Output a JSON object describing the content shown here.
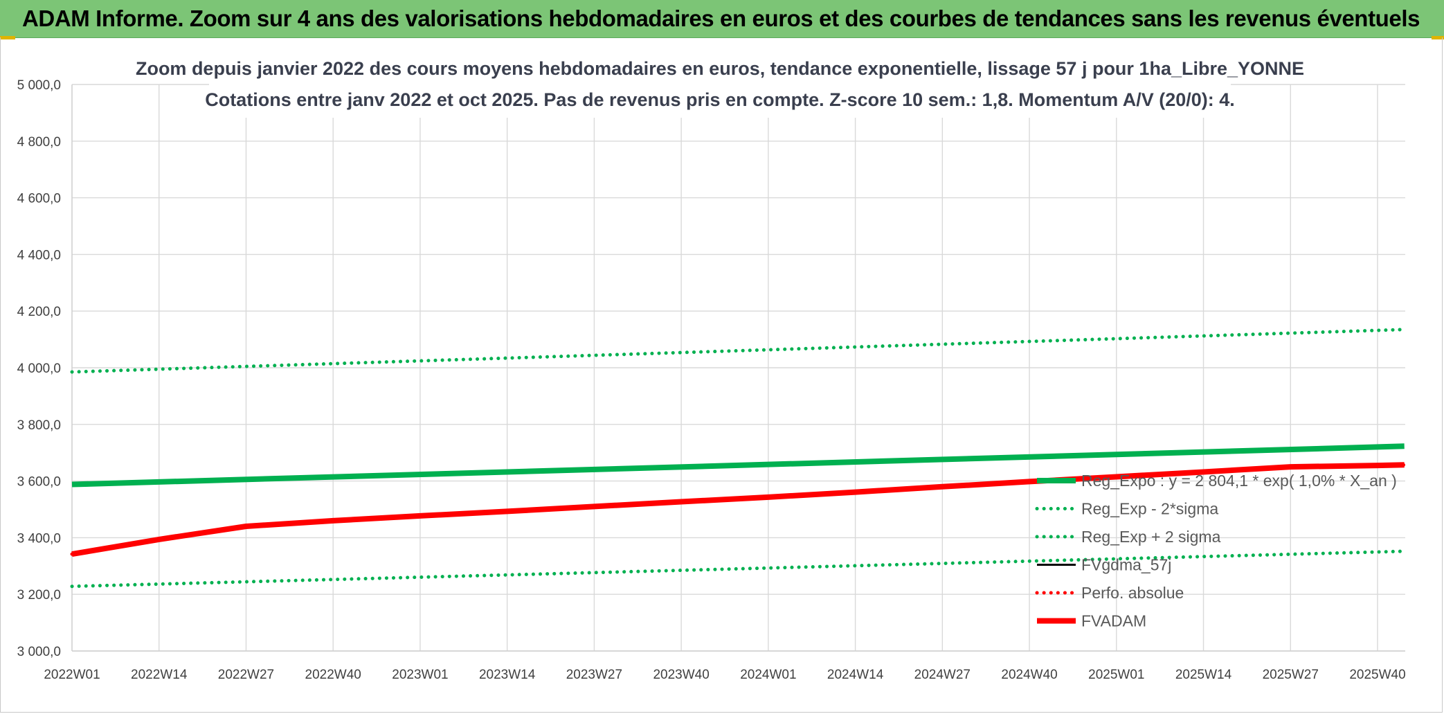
{
  "header": {
    "title": "ADAM Informe. Zoom sur 4 ans des valorisations hebdomadaires en euros et des courbes de tendances sans les revenus éventuels"
  },
  "chart_data": {
    "type": "line",
    "title": "Zoom depuis janvier 2022 des cours moyens hebdomadaires en euros, tendance exponentielle, lissage 57 j pour 1ha_Libre_YONNE",
    "subtitle": "Cotations entre janv 2022 et oct 2025. Pas de revenus pris en compte. Z-score 10 sem.: 1,8. Momentum A/V (20/0): 4.",
    "xlabel": "",
    "ylabel": "",
    "ylim": [
      3000,
      5000
    ],
    "y_ticks": [
      "3 000,0",
      "3 200,0",
      "3 400,0",
      "3 600,0",
      "3 800,0",
      "4 000,0",
      "4 200,0",
      "4 400,0",
      "4 600,0",
      "4 800,0",
      "5 000,0"
    ],
    "y_tick_values": [
      3000,
      3200,
      3400,
      3600,
      3800,
      4000,
      4200,
      4400,
      4600,
      4800,
      5000
    ],
    "categories": [
      "2022W01",
      "2022W14",
      "2022W27",
      "2022W40",
      "2023W01",
      "2023W14",
      "2023W27",
      "2023W40",
      "2024W01",
      "2024W14",
      "2024W27",
      "2024W40",
      "2025W01",
      "2025W14",
      "2025W27",
      "2025W40"
    ],
    "x_range": [
      "2022W01",
      "2025W44"
    ],
    "grid": true,
    "legend_position": "right",
    "colors": {
      "green": "#00b050",
      "red": "#ff0000",
      "black": "#000000",
      "grid": "#d9d9d9"
    },
    "series": [
      {
        "name": "Reg_Expo : y = 2 804,1 * exp( 1,0% *  X_an )",
        "style": "solid-thick",
        "color": "#00b050",
        "x": [
          "2022W01",
          "2025W44"
        ],
        "y": [
          3588,
          3723
        ]
      },
      {
        "name": "Reg_Exp - 2*sigma",
        "style": "dotted",
        "color": "#00b050",
        "x": [
          "2022W01",
          "2025W44"
        ],
        "y": [
          3228,
          3352
        ]
      },
      {
        "name": "Reg_Exp + 2 sigma",
        "style": "dotted",
        "color": "#00b050",
        "x": [
          "2022W01",
          "2025W44"
        ],
        "y": [
          3985,
          4135
        ]
      },
      {
        "name": "FVgdma_57j",
        "style": "solid",
        "color": "#000000",
        "x": [
          "2022W01",
          "2022W14",
          "2022W27",
          "2022W40",
          "2023W01",
          "2023W14",
          "2023W27",
          "2023W40",
          "2024W01",
          "2024W14",
          "2024W27",
          "2024W40",
          "2025W01",
          "2025W14",
          "2025W27",
          "2025W40",
          "2025W44"
        ],
        "y": [
          3342,
          3392,
          3438,
          3460,
          3477,
          3493,
          3510,
          3527,
          3543,
          3561,
          3580,
          3598,
          3615,
          3632,
          3649,
          3655,
          3657
        ]
      },
      {
        "name": "Perfo. absolue",
        "style": "dotted",
        "color": "#ff0000",
        "x": [
          "2022W01",
          "2022W14",
          "2022W27",
          "2022W40",
          "2023W01",
          "2023W14",
          "2023W27",
          "2023W40",
          "2024W01",
          "2024W14",
          "2024W27",
          "2024W40",
          "2025W01",
          "2025W14",
          "2025W27",
          "2025W40",
          "2025W44"
        ],
        "y": [
          3342,
          3394,
          3440,
          3460,
          3477,
          3493,
          3510,
          3527,
          3543,
          3561,
          3580,
          3598,
          3615,
          3632,
          3650,
          3655,
          3657
        ]
      },
      {
        "name": "FVADAM",
        "style": "solid-thick",
        "color": "#ff0000",
        "x": [
          "2022W01",
          "2022W14",
          "2022W27",
          "2022W40",
          "2023W01",
          "2023W14",
          "2023W27",
          "2023W40",
          "2024W01",
          "2024W14",
          "2024W27",
          "2024W40",
          "2025W01",
          "2025W14",
          "2025W27",
          "2025W40",
          "2025W44"
        ],
        "y": [
          3342,
          3394,
          3440,
          3460,
          3477,
          3493,
          3510,
          3527,
          3543,
          3561,
          3580,
          3598,
          3615,
          3632,
          3650,
          3655,
          3657
        ]
      }
    ]
  }
}
